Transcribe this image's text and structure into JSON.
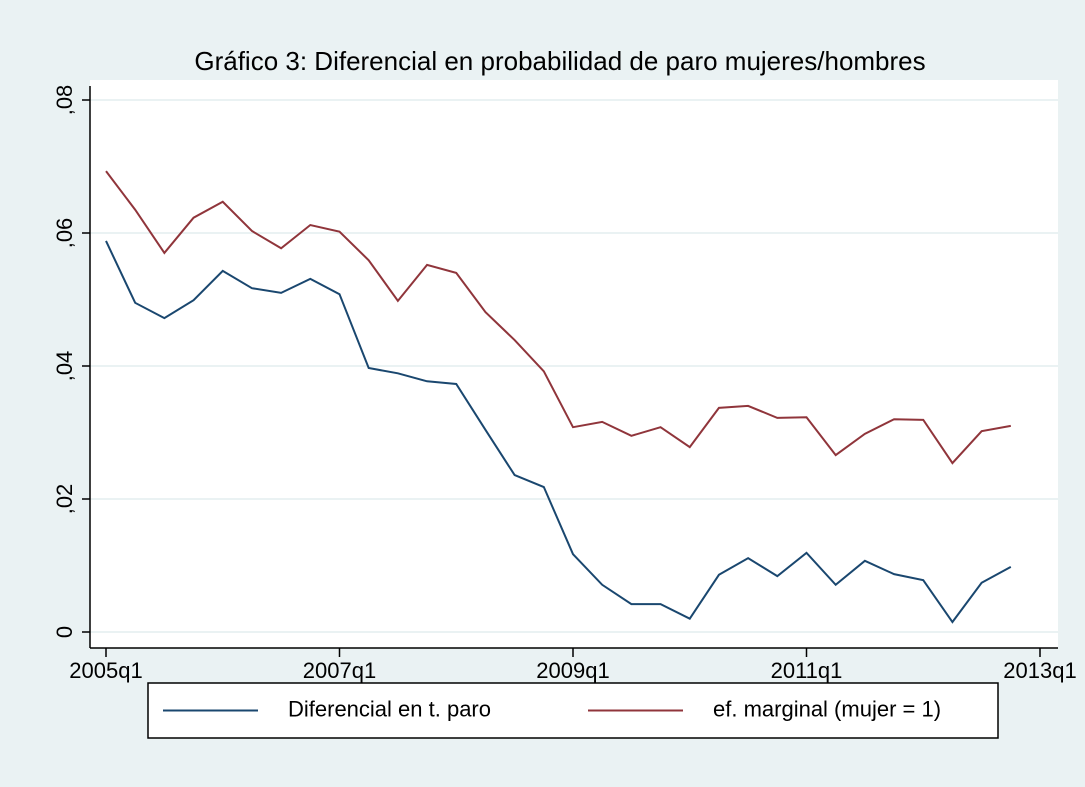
{
  "chart_data": {
    "type": "line",
    "title": "Gráfico 3: Diferencial en probabilidad de paro mujeres/hombres",
    "categories": [
      "2005q1",
      null,
      null,
      null,
      null,
      null,
      null,
      null,
      "2007q1",
      null,
      null,
      null,
      null,
      null,
      null,
      null,
      "2009q1",
      null,
      null,
      null,
      null,
      null,
      null,
      null,
      "2011q1",
      null,
      null,
      null,
      null,
      null,
      null,
      null,
      "2013q1"
    ],
    "series": [
      {
        "name": "Diferencial en t. paro",
        "color": "#1a476f",
        "values": [
          0.0588,
          0.0495,
          0.0472,
          0.0499,
          0.0543,
          0.0517,
          0.051,
          0.0531,
          0.0508,
          0.0397,
          0.0389,
          0.0377,
          0.0373,
          0.0304,
          0.0236,
          0.0218,
          0.0117,
          0.0071,
          0.0042,
          0.0042,
          0.002,
          0.0086,
          0.0111,
          0.0084,
          0.0119,
          0.0071,
          0.0107,
          0.0087,
          0.0078,
          0.0015,
          0.0074,
          0.0098,
          null
        ]
      },
      {
        "name": "ef. marginal (mujer = 1)",
        "color": "#90353b",
        "values": [
          0.0693,
          0.0635,
          0.057,
          0.0623,
          0.0647,
          0.0603,
          0.0577,
          0.0612,
          0.0602,
          0.0559,
          0.0498,
          0.0552,
          0.054,
          0.0481,
          0.0439,
          0.0392,
          0.0308,
          0.0316,
          0.0295,
          0.0308,
          0.0278,
          0.0337,
          0.034,
          0.0322,
          0.0323,
          0.0266,
          0.0298,
          0.032,
          0.0319,
          0.0254,
          0.0302,
          0.031,
          null
        ]
      }
    ],
    "ylim": [
      0,
      0.08
    ],
    "yticks": [
      0,
      {
        "value": 0.02,
        "label": ",02"
      },
      {
        "value": 0.04,
        "label": ",04"
      },
      {
        "value": 0.06,
        "label": ",06"
      },
      {
        "value": 0.08,
        "label": ",08"
      }
    ],
    "grid": true,
    "legend": "bottom"
  }
}
